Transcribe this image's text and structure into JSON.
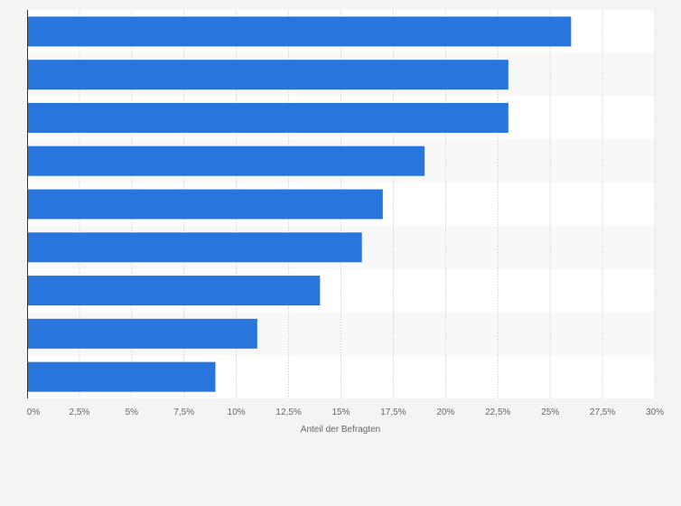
{
  "chart_data": {
    "type": "bar",
    "orientation": "horizontal",
    "categories": [
      "",
      "",
      "",
      "",
      "",
      "",
      "",
      "",
      ""
    ],
    "values": [
      26,
      23,
      23,
      19,
      17,
      16,
      14,
      11,
      9
    ],
    "xlabel": "Anteil der Befragten",
    "ylabel": "",
    "xlim": [
      0,
      30
    ],
    "xticks": [
      "0%",
      "2,5%",
      "5%",
      "7,5%",
      "10%",
      "12,5%",
      "15%",
      "17,5%",
      "20%",
      "22,5%",
      "25%",
      "27,5%",
      "30%"
    ],
    "grid": true,
    "legend": "none",
    "bar_color": "#2876dd",
    "band_colors": [
      "#ffffff",
      "#f8f8f8"
    ],
    "gridline_color": "#dcdcdc",
    "axis_color": "#333333"
  }
}
